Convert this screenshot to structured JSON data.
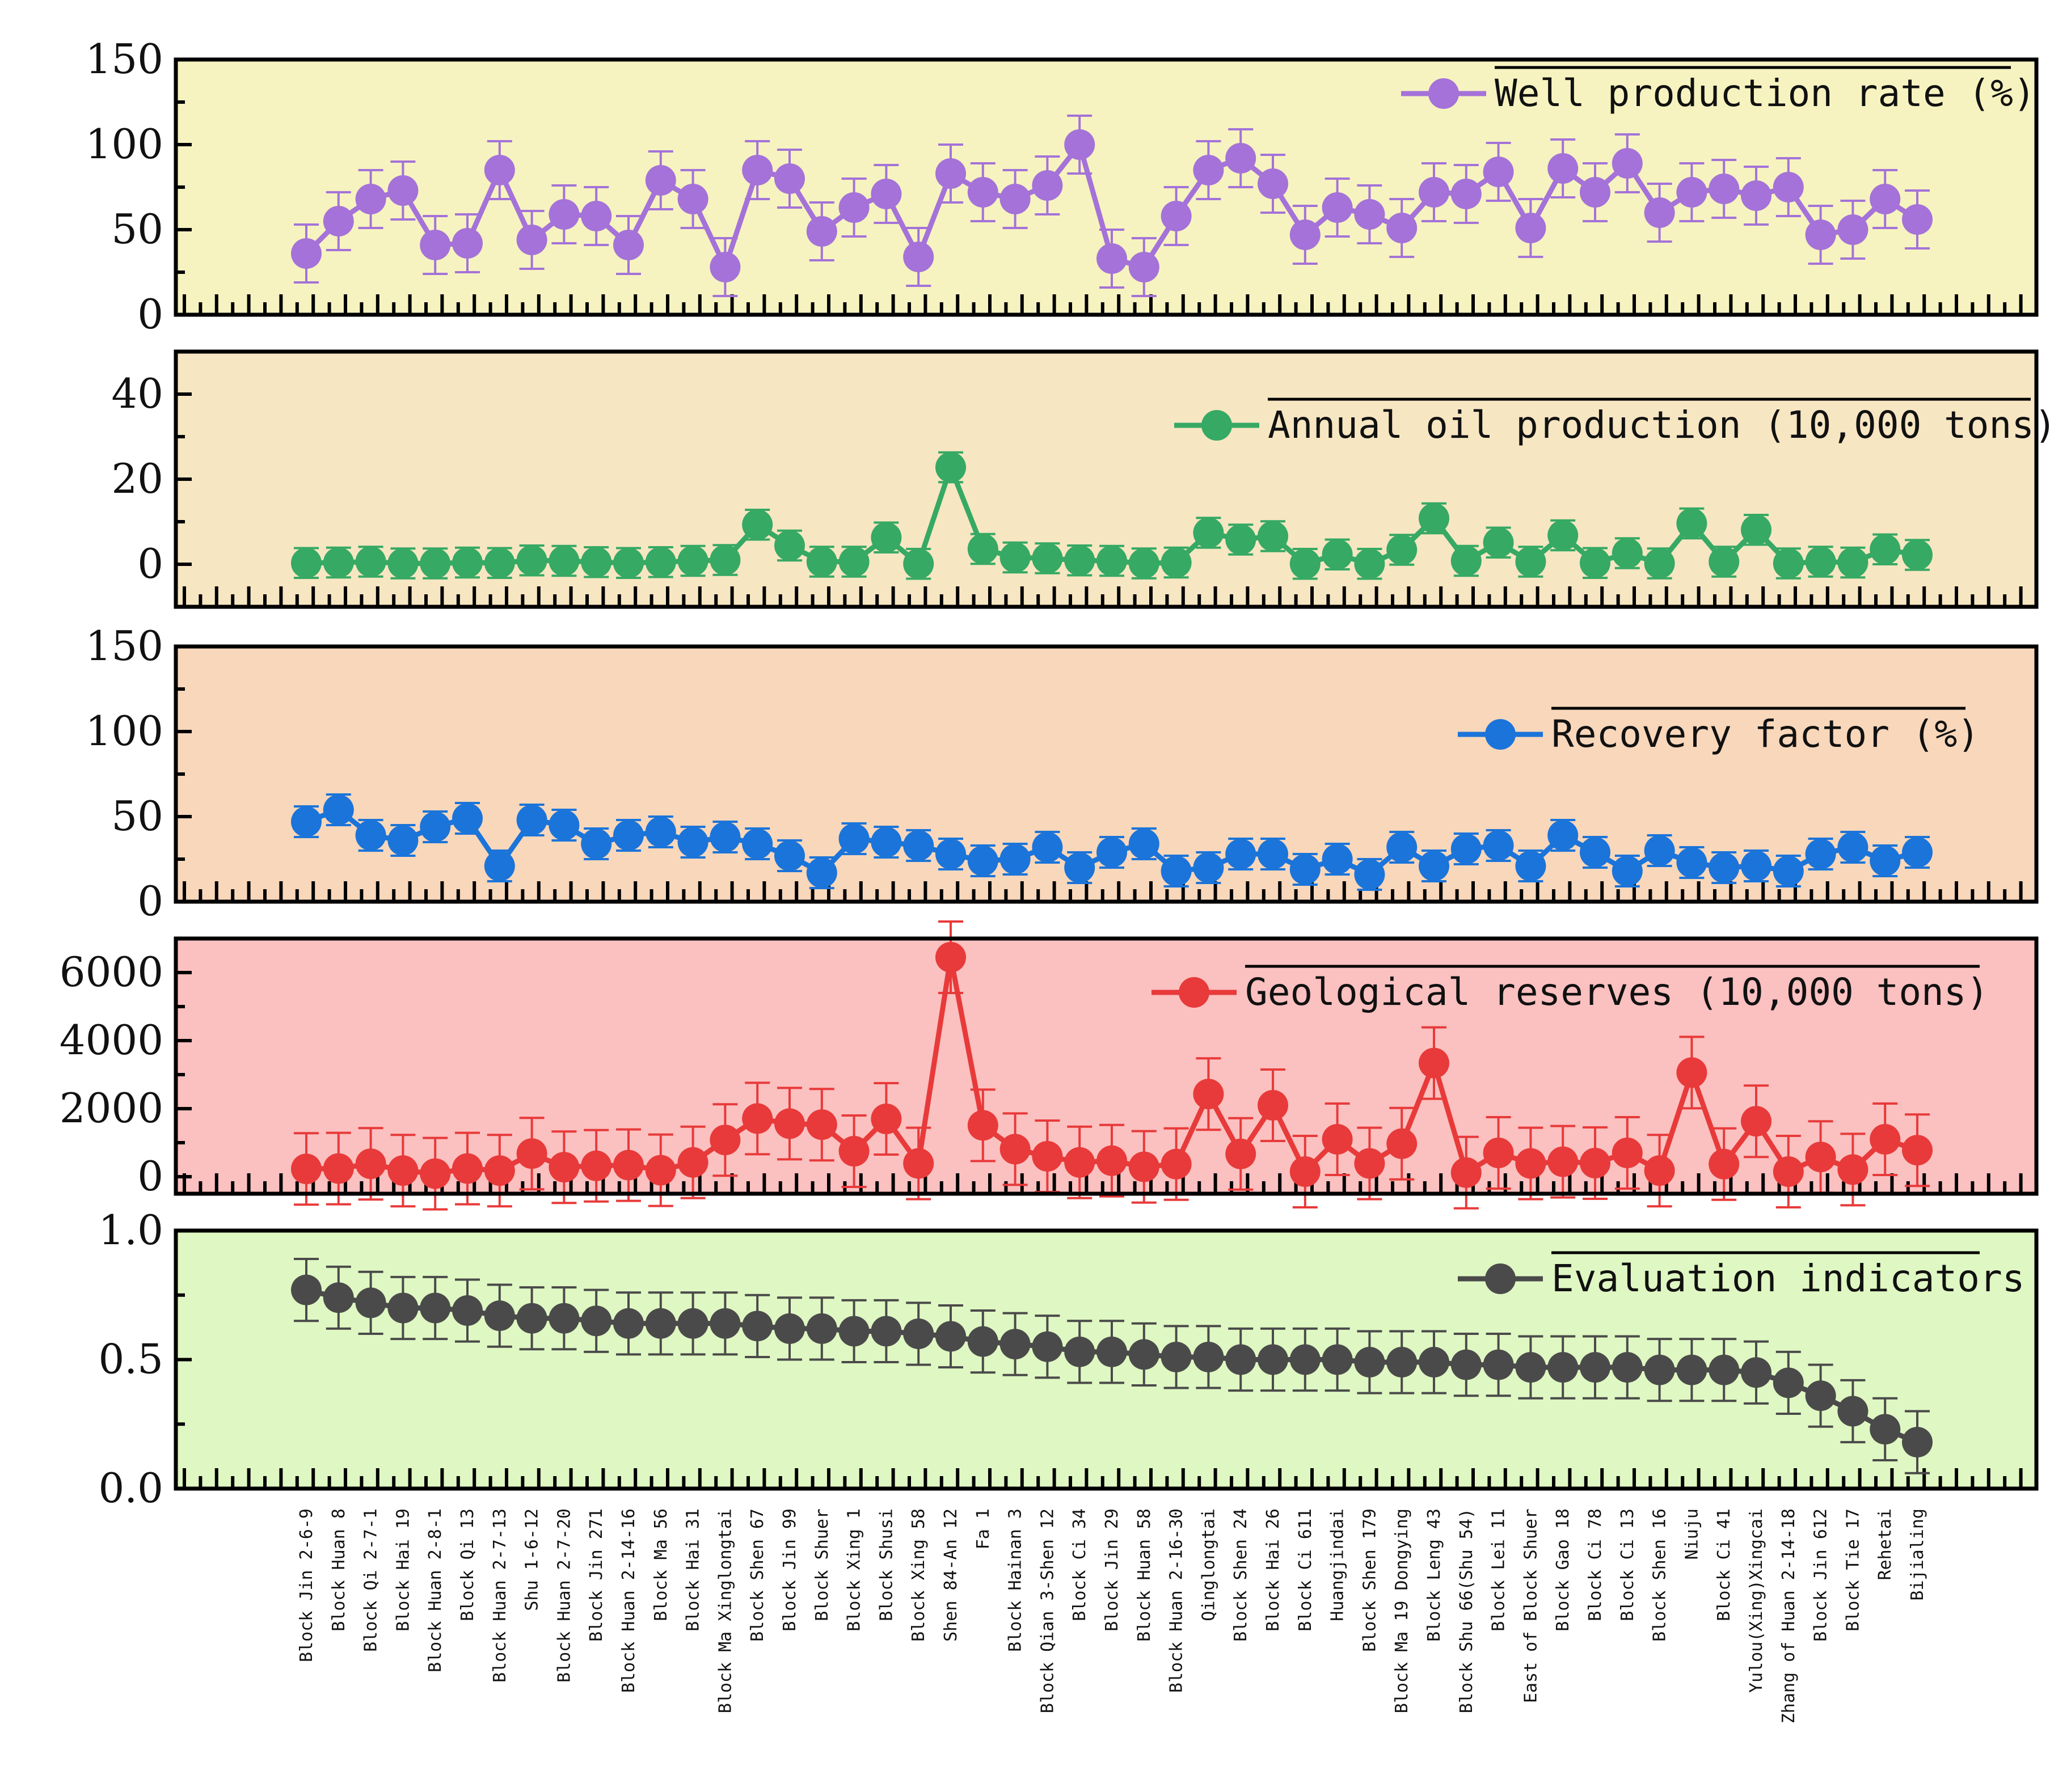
{
  "chart_data": {
    "type": "line",
    "categories": [
      "Block Jin 2-6-9",
      "Block Huan 8",
      "Block Qi 2-7-1",
      "Block Hai 19",
      "Block Huan 2-8-1",
      "Block Qi 13",
      "Block Huan 2-7-13",
      "Shu 1-6-12",
      "Block Huan 2-7-20",
      "Block Jin 271",
      "Block Huan 2-14-16",
      "Block Ma 56",
      "Block Hai 31",
      "Block Ma Xinglongtai",
      "Block Shen 67",
      "Block Jin 99",
      "Block Shuer",
      "Block Xing 1",
      "Block Shusi",
      "Block Xing 58",
      "Shen 84-An 12",
      "Fa 1",
      "Block Hainan 3",
      "Block Qian 3-Shen 12",
      "Block Ci 34",
      "Block Jin 29",
      "Block Huan 58",
      "Block Huan 2-16-30",
      "Qinglongtai",
      "Block Shen 24",
      "Block Hai 26",
      "Block Ci 611",
      "Huangjindai",
      "Block Shen 179",
      "Block Ma 19 Dongying",
      "Block Leng 43",
      "Block Shu 66(Shu 54)",
      "Block Lei 11",
      "East of Block Shuer",
      "Block Gao 18",
      "Block Ci 78",
      "Block Ci 13",
      "Block Shen 16",
      "Niuju",
      "Block Ci 41",
      "Yulou(Xing)Xingcai",
      "Zhang of Huan 2-14-18",
      "Block Jin 612",
      "Block Tie 17",
      "Rehetai",
      "Bijialing"
    ],
    "panels": [
      {
        "name": "Well production rate (%)",
        "color": "#a472d8",
        "background": "#f6f3c0",
        "ylim": [
          0,
          150
        ],
        "yticks": [
          "0",
          "50",
          "100",
          "150"
        ],
        "ytick_values": [
          0,
          50,
          100,
          150
        ],
        "values": [
          36,
          55,
          68,
          73,
          41,
          42,
          85,
          44,
          59,
          58,
          41,
          79,
          68,
          28,
          85,
          80,
          49,
          63,
          71,
          34,
          83,
          72,
          68,
          76,
          100,
          33,
          28,
          58,
          85,
          92,
          77,
          47,
          63,
          59,
          51,
          72,
          71,
          84,
          51,
          86,
          72,
          89,
          60,
          72,
          74,
          70,
          75,
          47,
          50,
          68,
          56
        ],
        "error": [
          17,
          17,
          17,
          17,
          17,
          17,
          17,
          17,
          17,
          17,
          17,
          17,
          17,
          17,
          17,
          17,
          17,
          17,
          17,
          17,
          17,
          17,
          17,
          17,
          17,
          17,
          17,
          17,
          17,
          17,
          17,
          17,
          17,
          17,
          17,
          17,
          17,
          17,
          17,
          17,
          17,
          17,
          17,
          17,
          17,
          17,
          17,
          17,
          17,
          17,
          17
        ]
      },
      {
        "name": "Annual oil production (10,000 tons)",
        "color": "#36a964",
        "background": "#f7e6c2",
        "ylim": [
          -10,
          50
        ],
        "yticks": [
          "0",
          "20",
          "40"
        ],
        "ytick_values": [
          0,
          20,
          40
        ],
        "values": [
          0.3,
          0.4,
          0.6,
          0.2,
          0.2,
          0.4,
          0.3,
          0.9,
          0.8,
          0.5,
          0.3,
          0.5,
          0.8,
          1.0,
          9.3,
          4.4,
          0.6,
          0.6,
          6.3,
          0.1,
          22.8,
          3.6,
          1.6,
          1.4,
          0.9,
          0.8,
          0.2,
          0.4,
          7.4,
          5.8,
          6.6,
          0.1,
          2.3,
          0.1,
          3.4,
          10.8,
          0.8,
          5.1,
          0.6,
          6.8,
          0.3,
          2.6,
          0.2,
          9.6,
          0.6,
          8.1,
          0.2,
          0.6,
          0.4,
          3.5,
          2.2
        ],
        "error": [
          3.5,
          3.5,
          3.5,
          3.5,
          3.5,
          3.5,
          3.5,
          3.5,
          3.5,
          3.5,
          3.5,
          3.5,
          3.5,
          3.5,
          3.5,
          3.5,
          3.5,
          3.5,
          3.5,
          3.5,
          3.5,
          3.5,
          3.5,
          3.5,
          3.5,
          3.5,
          3.5,
          3.5,
          3.5,
          3.5,
          3.5,
          3.5,
          3.5,
          3.5,
          3.5,
          3.5,
          3.5,
          3.5,
          3.5,
          3.5,
          3.5,
          3.5,
          3.5,
          3.5,
          3.5,
          3.5,
          3.5,
          3.5,
          3.5,
          3.5,
          3.5
        ]
      },
      {
        "name": "Recovery factor (%)",
        "color": "#1b74d9",
        "background": "#f8d7bb",
        "ylim": [
          0,
          150
        ],
        "yticks": [
          "0",
          "50",
          "100",
          "150"
        ],
        "ytick_values": [
          0,
          50,
          100,
          150
        ],
        "values": [
          47,
          54,
          39,
          36,
          44,
          49,
          21,
          48,
          45,
          34,
          39,
          41,
          35,
          38,
          34,
          27,
          17,
          37,
          35,
          33,
          28,
          24,
          25,
          32,
          20,
          29,
          34,
          18,
          20,
          28,
          28,
          19,
          25,
          16,
          32,
          21,
          31,
          33,
          21,
          39,
          29,
          18,
          30,
          23,
          20,
          21,
          18,
          28,
          32,
          24,
          29
        ],
        "error": [
          9,
          9,
          9,
          9,
          9,
          9,
          9,
          9,
          9,
          9,
          9,
          9,
          9,
          9,
          9,
          9,
          9,
          9,
          9,
          9,
          9,
          9,
          9,
          9,
          9,
          9,
          9,
          9,
          9,
          9,
          9,
          9,
          9,
          9,
          9,
          9,
          9,
          9,
          9,
          9,
          9,
          9,
          9,
          9,
          9,
          9,
          9,
          9,
          9,
          9,
          9
        ]
      },
      {
        "name": "Geological reserves (10,000 tons)",
        "color": "#e83a3a",
        "background": "#fbc0c0",
        "ylim": [
          -500,
          7000
        ],
        "yticks": [
          "0",
          "2000",
          "4000",
          "6000"
        ],
        "ytick_values": [
          0,
          2000,
          4000,
          6000
        ],
        "values": [
          230,
          240,
          380,
          180,
          90,
          240,
          180,
          680,
          280,
          320,
          340,
          190,
          420,
          1080,
          1710,
          1560,
          1530,
          750,
          1700,
          390,
          6450,
          1510,
          810,
          600,
          420,
          470,
          290,
          370,
          2430,
          670,
          2100,
          150,
          1100,
          390,
          970,
          3340,
          120,
          700,
          390,
          440,
          400,
          700,
          180,
          3060,
          370,
          1630,
          150,
          580,
          210,
          1100,
          780
        ],
        "error": [
          1050,
          1050,
          1050,
          1050,
          1050,
          1050,
          1050,
          1050,
          1050,
          1050,
          1050,
          1050,
          1050,
          1050,
          1050,
          1050,
          1050,
          1050,
          1050,
          1050,
          1050,
          1050,
          1050,
          1050,
          1050,
          1050,
          1050,
          1050,
          1050,
          1050,
          1050,
          1050,
          1050,
          1050,
          1050,
          1050,
          1050,
          1050,
          1050,
          1050,
          1050,
          1050,
          1050,
          1050,
          1050,
          1050,
          1050,
          1050,
          1050,
          1050,
          1050
        ]
      },
      {
        "name": "Evaluation indicators",
        "color": "#4a4a4a",
        "background": "#dff7c2",
        "ylim": [
          0.0,
          1.0
        ],
        "yticks": [
          "0.0",
          "0.5",
          "1.0"
        ],
        "ytick_values": [
          0,
          0.5,
          1
        ],
        "values": [
          0.77,
          0.74,
          0.72,
          0.7,
          0.7,
          0.69,
          0.67,
          0.66,
          0.66,
          0.65,
          0.64,
          0.64,
          0.64,
          0.64,
          0.63,
          0.62,
          0.62,
          0.61,
          0.61,
          0.6,
          0.59,
          0.57,
          0.56,
          0.55,
          0.53,
          0.53,
          0.52,
          0.51,
          0.51,
          0.5,
          0.5,
          0.5,
          0.5,
          0.49,
          0.49,
          0.49,
          0.48,
          0.48,
          0.47,
          0.47,
          0.47,
          0.47,
          0.46,
          0.46,
          0.46,
          0.45,
          0.41,
          0.36,
          0.3,
          0.23,
          0.18
        ],
        "error": [
          0.12,
          0.12,
          0.12,
          0.12,
          0.12,
          0.12,
          0.12,
          0.12,
          0.12,
          0.12,
          0.12,
          0.12,
          0.12,
          0.12,
          0.12,
          0.12,
          0.12,
          0.12,
          0.12,
          0.12,
          0.12,
          0.12,
          0.12,
          0.12,
          0.12,
          0.12,
          0.12,
          0.12,
          0.12,
          0.12,
          0.12,
          0.12,
          0.12,
          0.12,
          0.12,
          0.12,
          0.12,
          0.12,
          0.12,
          0.12,
          0.12,
          0.12,
          0.12,
          0.12,
          0.12,
          0.12,
          0.12,
          0.12,
          0.12,
          0.12,
          0.12
        ]
      }
    ]
  }
}
